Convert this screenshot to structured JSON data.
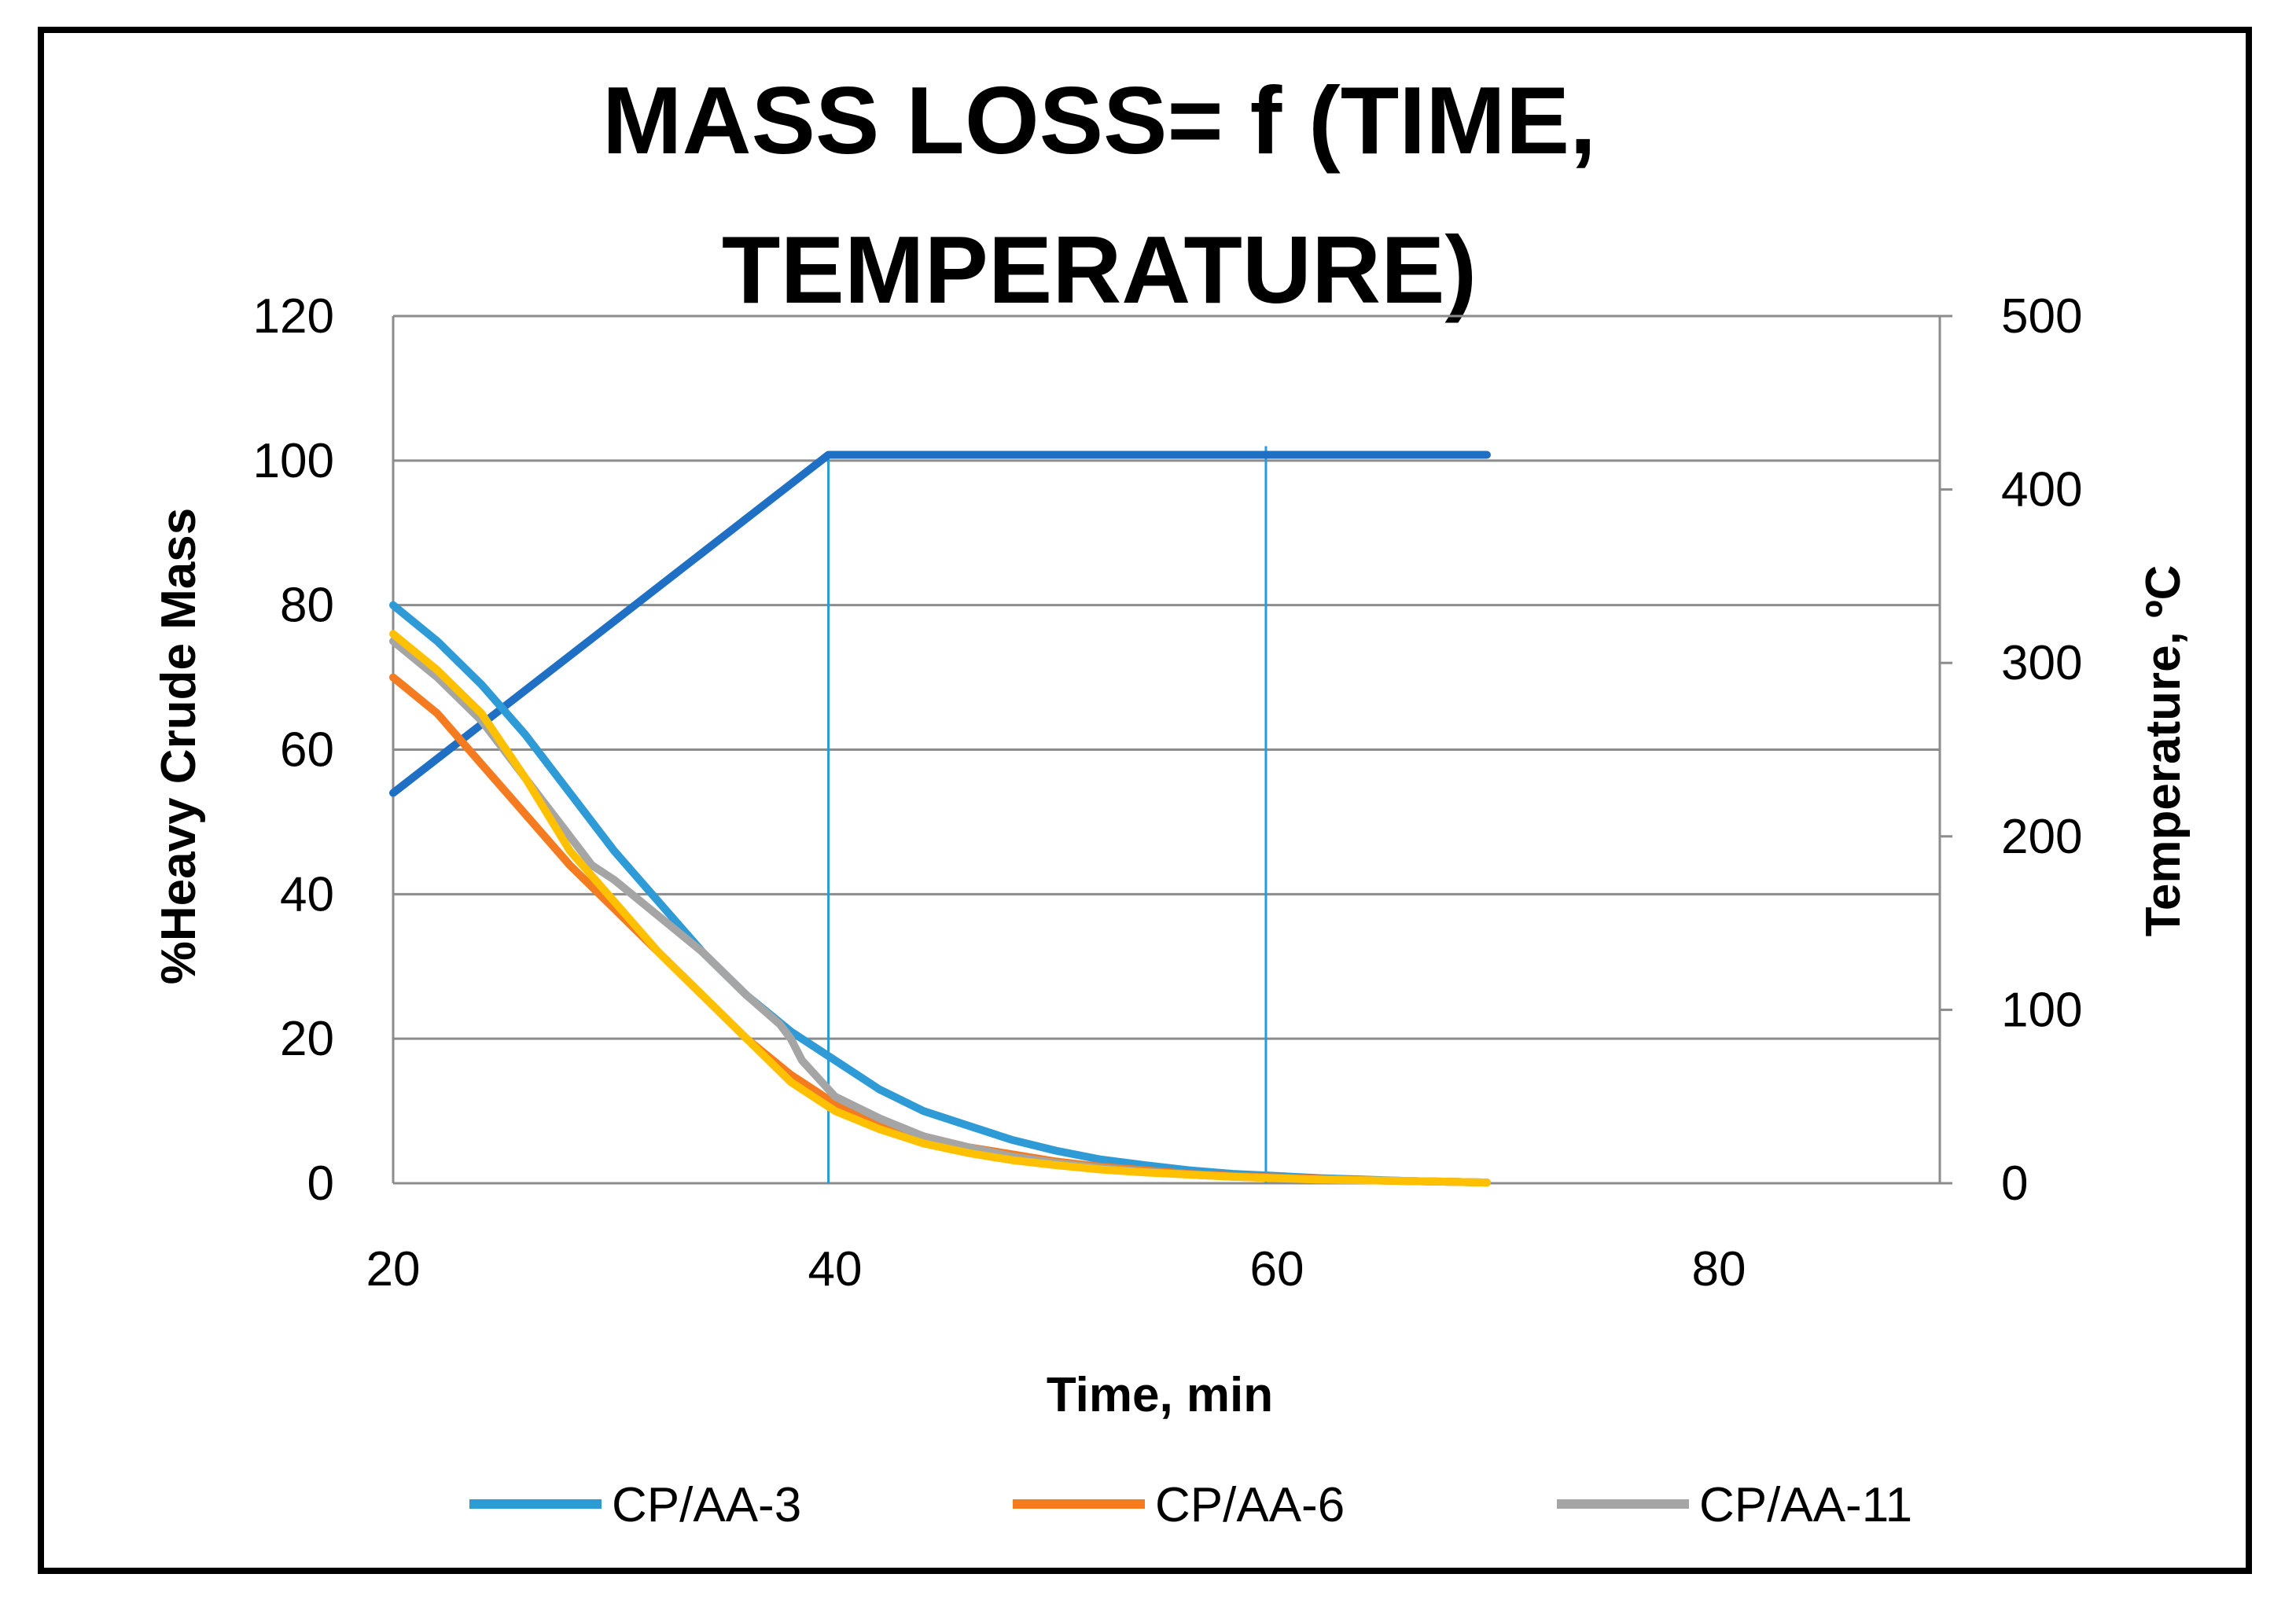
{
  "colors": {
    "background": "#ffffff",
    "frame": "#000000",
    "grid": "#8c8c8c",
    "temperature": "#1f6fc4",
    "marker_lines": "#2a9bd6"
  },
  "chart_data": {
    "type": "line",
    "title": "MASS LOSS= f (TIME, TEMPERATURE)",
    "title_lines": [
      "MASS LOSS= f (TIME,",
      "TEMPERATURE)"
    ],
    "xlabel": "Time, min",
    "ylabel": "%Heavy Crude Mass",
    "y2label": "Temperature, ºC",
    "xlim": [
      20,
      90
    ],
    "ylim": [
      0,
      120
    ],
    "y2lim": [
      0,
      500
    ],
    "x_ticks": [
      20,
      40,
      60,
      80
    ],
    "y_ticks": [
      0,
      20,
      40,
      60,
      80,
      100,
      120
    ],
    "y2_ticks": [
      0,
      100,
      200,
      300,
      400,
      500
    ],
    "grid": true,
    "legend_position": "bottom",
    "series": [
      {
        "name": "CP/AA-3",
        "color": "#2e9ad6",
        "axis": "left",
        "x": [
          20,
          22,
          24,
          26,
          28,
          30,
          32,
          34,
          36,
          38,
          40,
          42,
          44,
          46,
          48,
          50,
          52,
          54,
          56,
          58,
          60,
          62,
          64,
          66,
          68,
          69.5
        ],
        "y": [
          80,
          75,
          69,
          62,
          54,
          46,
          39,
          32,
          26,
          21,
          17,
          13,
          10,
          8,
          6,
          4.5,
          3.3,
          2.5,
          1.8,
          1.3,
          1.0,
          0.7,
          0.5,
          0.3,
          0.2,
          0.1
        ]
      },
      {
        "name": "CP/AA-6",
        "color": "#f47b20",
        "axis": "left",
        "x": [
          20,
          22,
          24,
          26,
          28,
          30,
          32,
          34,
          36,
          38,
          40,
          42,
          44,
          46,
          48,
          50,
          52,
          54,
          56,
          58,
          60,
          62,
          64,
          66,
          68,
          69.5
        ],
        "y": [
          70,
          65,
          58,
          51,
          44,
          38,
          32,
          26,
          20,
          15,
          11,
          8.5,
          6.5,
          5,
          4,
          3,
          2.3,
          1.8,
          1.3,
          1.0,
          0.8,
          0.6,
          0.4,
          0.3,
          0.2,
          0.1
        ]
      },
      {
        "name": "CP/AA-11",
        "color": "#a5a5a5",
        "axis": "left",
        "x": [
          20,
          22,
          24,
          26,
          28,
          29,
          30,
          32,
          34,
          36,
          37.5,
          38,
          38.5,
          40,
          42,
          44,
          46,
          48,
          50,
          52,
          54,
          56,
          58,
          60,
          62,
          64,
          66,
          68,
          69.5
        ],
        "y": [
          75,
          70,
          64,
          56,
          48,
          44,
          42,
          37,
          32,
          26,
          22,
          20,
          17,
          12,
          9,
          6.5,
          5,
          3.7,
          2.8,
          2.1,
          1.6,
          1.2,
          0.9,
          0.7,
          0.5,
          0.4,
          0.3,
          0.2,
          0.1
        ]
      },
      {
        "color": "#ffc000",
        "axis": "left",
        "x": [
          20,
          22,
          24,
          26,
          28,
          30,
          32,
          34,
          36,
          38,
          40,
          42,
          44,
          46,
          48,
          50,
          52,
          54,
          56,
          58,
          60,
          62,
          64,
          66,
          68,
          69.5
        ],
        "y": [
          76,
          71,
          65,
          56,
          46,
          39,
          32,
          26,
          20,
          14,
          10,
          7.5,
          5.5,
          4.2,
          3.2,
          2.5,
          1.9,
          1.5,
          1.2,
          0.9,
          0.7,
          0.5,
          0.4,
          0.3,
          0.2,
          0.1
        ]
      },
      {
        "color": "#1f6fc4",
        "axis": "right",
        "x": [
          20,
          39.7,
          69.5
        ],
        "y": [
          225,
          420,
          420
        ]
      }
    ],
    "vertical_lines": [
      {
        "x": 39.7,
        "from_y2": 0,
        "to_y2": 420
      },
      {
        "x": 59.5,
        "from_y2": 0,
        "to_y2": 425
      }
    ],
    "legend": [
      "CP/AA-3",
      "CP/AA-6",
      "CP/AA-11"
    ]
  }
}
